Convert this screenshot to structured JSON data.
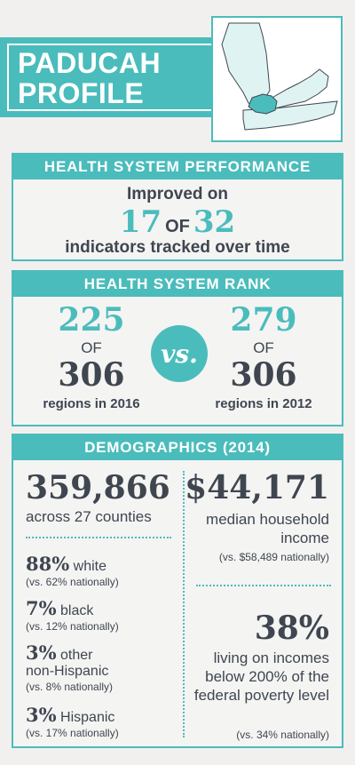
{
  "header": {
    "title_line1": "PADUCAH",
    "title_line2": "PROFILE"
  },
  "colors": {
    "accent": "#4bbcbc",
    "text": "#3f4650",
    "background": "#f1f0ef"
  },
  "performance": {
    "heading": "HEALTH SYSTEM PERFORMANCE",
    "line1": "Improved on",
    "improved": "17",
    "of": "OF",
    "total": "32",
    "line3": "indicators tracked over time"
  },
  "rank": {
    "heading": "HEALTH SYSTEM RANK",
    "current_rank": "225",
    "current_of": "OF",
    "current_total": "306",
    "current_caption": "regions in 2016",
    "vs": "vs.",
    "prior_rank": "279",
    "prior_of": "OF",
    "prior_total": "306",
    "prior_caption": "regions in 2012"
  },
  "demographics": {
    "heading": "DEMOGRAPHICS (2014)",
    "population": "359,866",
    "population_sub": "across 27 counties",
    "groups": [
      {
        "pct": "88%",
        "label": "white",
        "note": "(vs. 62% nationally)"
      },
      {
        "pct": "7%",
        "label": "black",
        "note": "(vs. 12% nationally)"
      },
      {
        "pct": "3%",
        "label": "other",
        "label2": "non-Hispanic",
        "note": "(vs. 8% nationally)"
      },
      {
        "pct": "3%",
        "label": "Hispanic",
        "note": "(vs. 17% nationally)"
      }
    ],
    "income": "$44,171",
    "income_sub": "median household income",
    "income_note": "(vs. $58,489 nationally)",
    "poverty": "38%",
    "poverty_sub": "living on incomes below 200% of the federal poverty level",
    "poverty_note": "(vs. 34% nationally)"
  }
}
